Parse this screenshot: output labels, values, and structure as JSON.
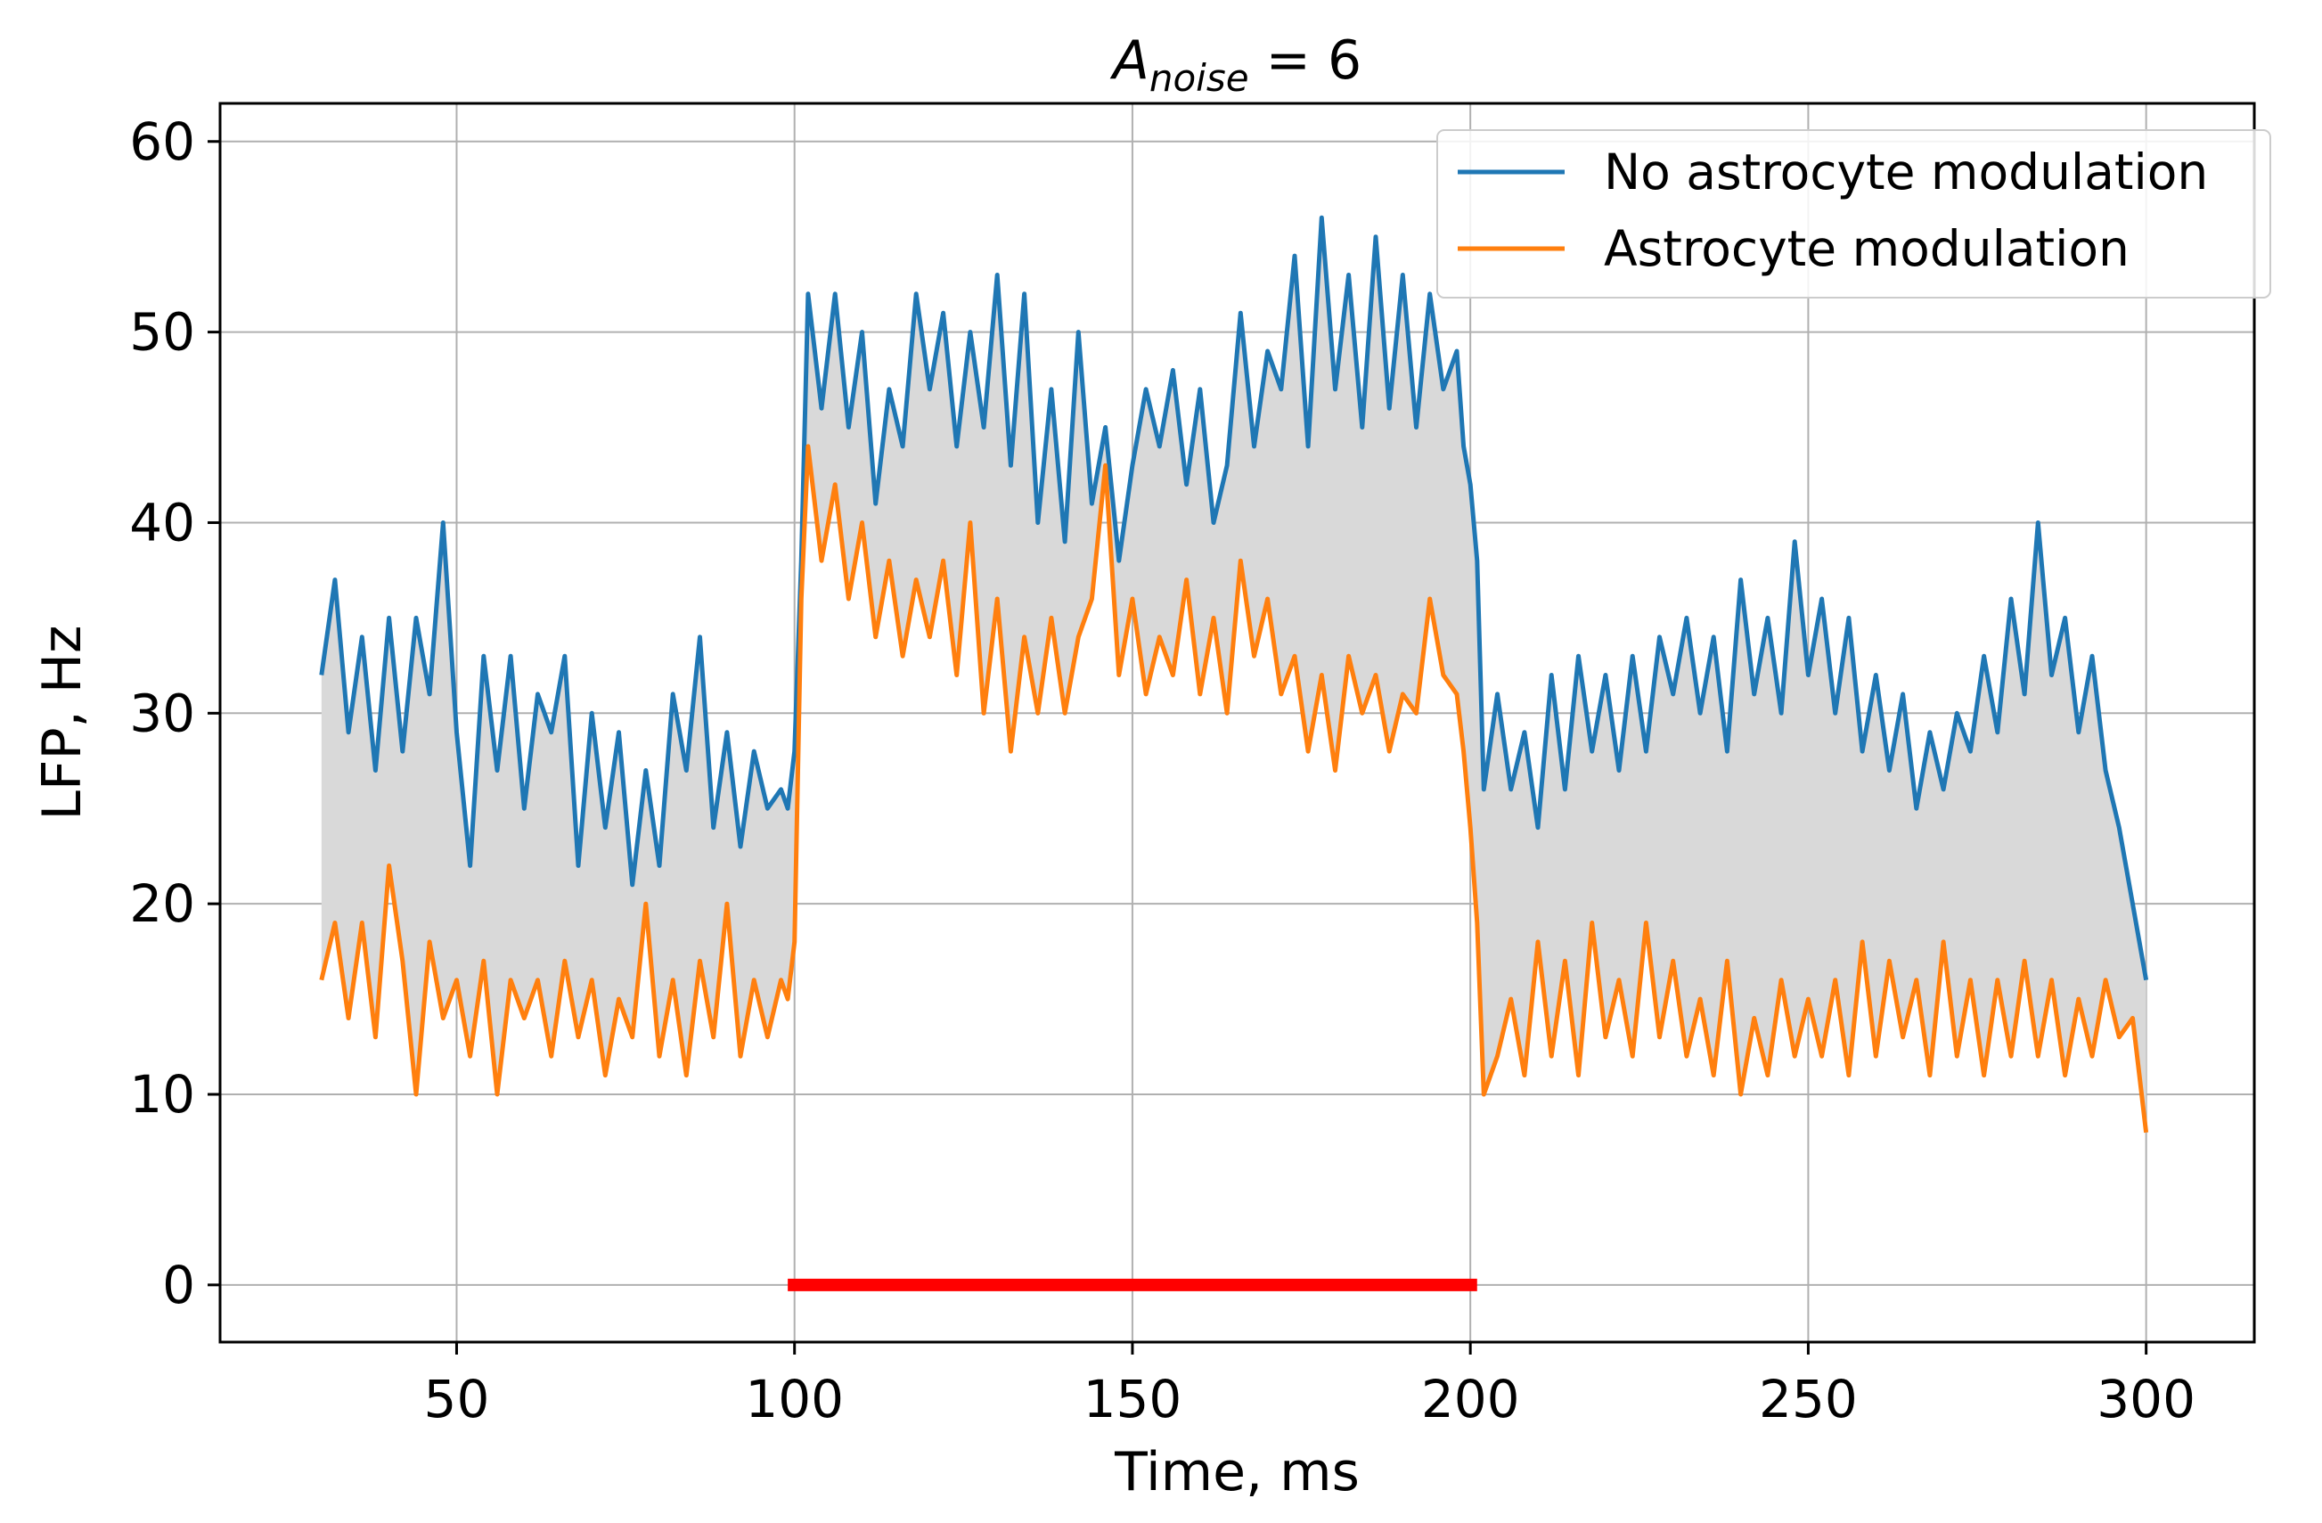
{
  "chart_data": {
    "type": "line",
    "title": {
      "main": "A",
      "subscript": "noise",
      "rest": " =  6"
    },
    "xlabel": "Time, ms",
    "ylabel": "LFP, Hz",
    "xlim": [
      15,
      316
    ],
    "ylim": [
      -3,
      62
    ],
    "xticks": [
      50,
      100,
      150,
      200,
      250,
      300
    ],
    "yticks": [
      0,
      10,
      20,
      30,
      40,
      50,
      60
    ],
    "grid": true,
    "legend_position": "top-right",
    "fill_between": {
      "color": "#d9d9d9",
      "between": [
        "No astrocyte modulation",
        "Astrocyte modulation"
      ]
    },
    "stimulus_bar": {
      "x_start": 99,
      "x_end": 201,
      "y": 0,
      "color": "#ff0000"
    },
    "series": [
      {
        "name": "No astrocyte modulation",
        "color": "#1f77b4",
        "x": [
          30,
          32,
          34,
          36,
          38,
          40,
          42,
          44,
          46,
          48,
          50,
          52,
          54,
          56,
          58,
          60,
          62,
          64,
          66,
          68,
          70,
          72,
          74,
          76,
          78,
          80,
          82,
          84,
          86,
          88,
          90,
          92,
          94,
          96,
          98,
          99,
          100,
          101,
          102,
          104,
          106,
          108,
          110,
          112,
          114,
          116,
          118,
          120,
          122,
          124,
          126,
          128,
          130,
          132,
          134,
          136,
          138,
          140,
          142,
          144,
          146,
          148,
          150,
          152,
          154,
          156,
          158,
          160,
          162,
          164,
          166,
          168,
          170,
          172,
          174,
          176,
          178,
          180,
          182,
          184,
          186,
          188,
          190,
          192,
          194,
          196,
          198,
          199,
          200,
          201,
          202,
          204,
          206,
          208,
          210,
          212,
          214,
          216,
          218,
          220,
          222,
          224,
          226,
          228,
          230,
          232,
          234,
          236,
          238,
          240,
          242,
          244,
          246,
          248,
          250,
          252,
          254,
          256,
          258,
          260,
          262,
          264,
          266,
          268,
          270,
          272,
          274,
          276,
          278,
          280,
          282,
          284,
          286,
          288,
          290,
          292,
          294,
          296,
          298,
          300
        ],
        "values": [
          32,
          37,
          29,
          34,
          27,
          35,
          28,
          35,
          31,
          40,
          29,
          22,
          33,
          27,
          33,
          25,
          31,
          29,
          33,
          22,
          30,
          24,
          29,
          21,
          27,
          22,
          31,
          27,
          34,
          24,
          29,
          23,
          28,
          25,
          26,
          25,
          28,
          38,
          52,
          46,
          52,
          45,
          50,
          41,
          47,
          44,
          52,
          47,
          51,
          44,
          50,
          45,
          53,
          43,
          52,
          40,
          47,
          39,
          50,
          41,
          45,
          38,
          43,
          47,
          44,
          48,
          42,
          47,
          40,
          43,
          51,
          44,
          49,
          47,
          54,
          44,
          56,
          47,
          53,
          45,
          55,
          46,
          53,
          45,
          52,
          47,
          49,
          44,
          42,
          38,
          26,
          31,
          26,
          29,
          24,
          32,
          26,
          33,
          28,
          32,
          27,
          33,
          28,
          34,
          31,
          35,
          30,
          34,
          28,
          37,
          31,
          35,
          30,
          39,
          32,
          36,
          30,
          35,
          28,
          32,
          27,
          31,
          25,
          29,
          26,
          30,
          28,
          33,
          29,
          36,
          31,
          40,
          32,
          35,
          29,
          33,
          27,
          24,
          20,
          16
        ]
      },
      {
        "name": "Astrocyte modulation",
        "color": "#ff7f0e",
        "x": [
          30,
          32,
          34,
          36,
          38,
          40,
          42,
          44,
          46,
          48,
          50,
          52,
          54,
          56,
          58,
          60,
          62,
          64,
          66,
          68,
          70,
          72,
          74,
          76,
          78,
          80,
          82,
          84,
          86,
          88,
          90,
          92,
          94,
          96,
          98,
          99,
          100,
          101,
          102,
          104,
          106,
          108,
          110,
          112,
          114,
          116,
          118,
          120,
          122,
          124,
          126,
          128,
          130,
          132,
          134,
          136,
          138,
          140,
          142,
          144,
          146,
          148,
          150,
          152,
          154,
          156,
          158,
          160,
          162,
          164,
          166,
          168,
          170,
          172,
          174,
          176,
          178,
          180,
          182,
          184,
          186,
          188,
          190,
          192,
          194,
          196,
          198,
          199,
          200,
          201,
          202,
          204,
          206,
          208,
          210,
          212,
          214,
          216,
          218,
          220,
          222,
          224,
          226,
          228,
          230,
          232,
          234,
          236,
          238,
          240,
          242,
          244,
          246,
          248,
          250,
          252,
          254,
          256,
          258,
          260,
          262,
          264,
          266,
          268,
          270,
          272,
          274,
          276,
          278,
          280,
          282,
          284,
          286,
          288,
          290,
          292,
          294,
          296,
          298,
          300
        ],
        "values": [
          16,
          19,
          14,
          19,
          13,
          22,
          17,
          10,
          18,
          14,
          16,
          12,
          17,
          10,
          16,
          14,
          16,
          12,
          17,
          13,
          16,
          11,
          15,
          13,
          20,
          12,
          16,
          11,
          17,
          13,
          20,
          12,
          16,
          13,
          16,
          15,
          18,
          36,
          44,
          38,
          42,
          36,
          40,
          34,
          38,
          33,
          37,
          34,
          38,
          32,
          40,
          30,
          36,
          28,
          34,
          30,
          35,
          30,
          34,
          36,
          43,
          32,
          36,
          31,
          34,
          32,
          37,
          31,
          35,
          30,
          38,
          33,
          36,
          31,
          33,
          28,
          32,
          27,
          33,
          30,
          32,
          28,
          31,
          30,
          36,
          32,
          31,
          28,
          24,
          19,
          10,
          12,
          15,
          11,
          18,
          12,
          17,
          11,
          19,
          13,
          16,
          12,
          19,
          13,
          17,
          12,
          15,
          11,
          17,
          10,
          14,
          11,
          16,
          12,
          15,
          12,
          16,
          11,
          18,
          12,
          17,
          13,
          16,
          11,
          18,
          12,
          16,
          11,
          16,
          12,
          17,
          12,
          16,
          11,
          15,
          12,
          16,
          13,
          14,
          8
        ]
      }
    ]
  }
}
